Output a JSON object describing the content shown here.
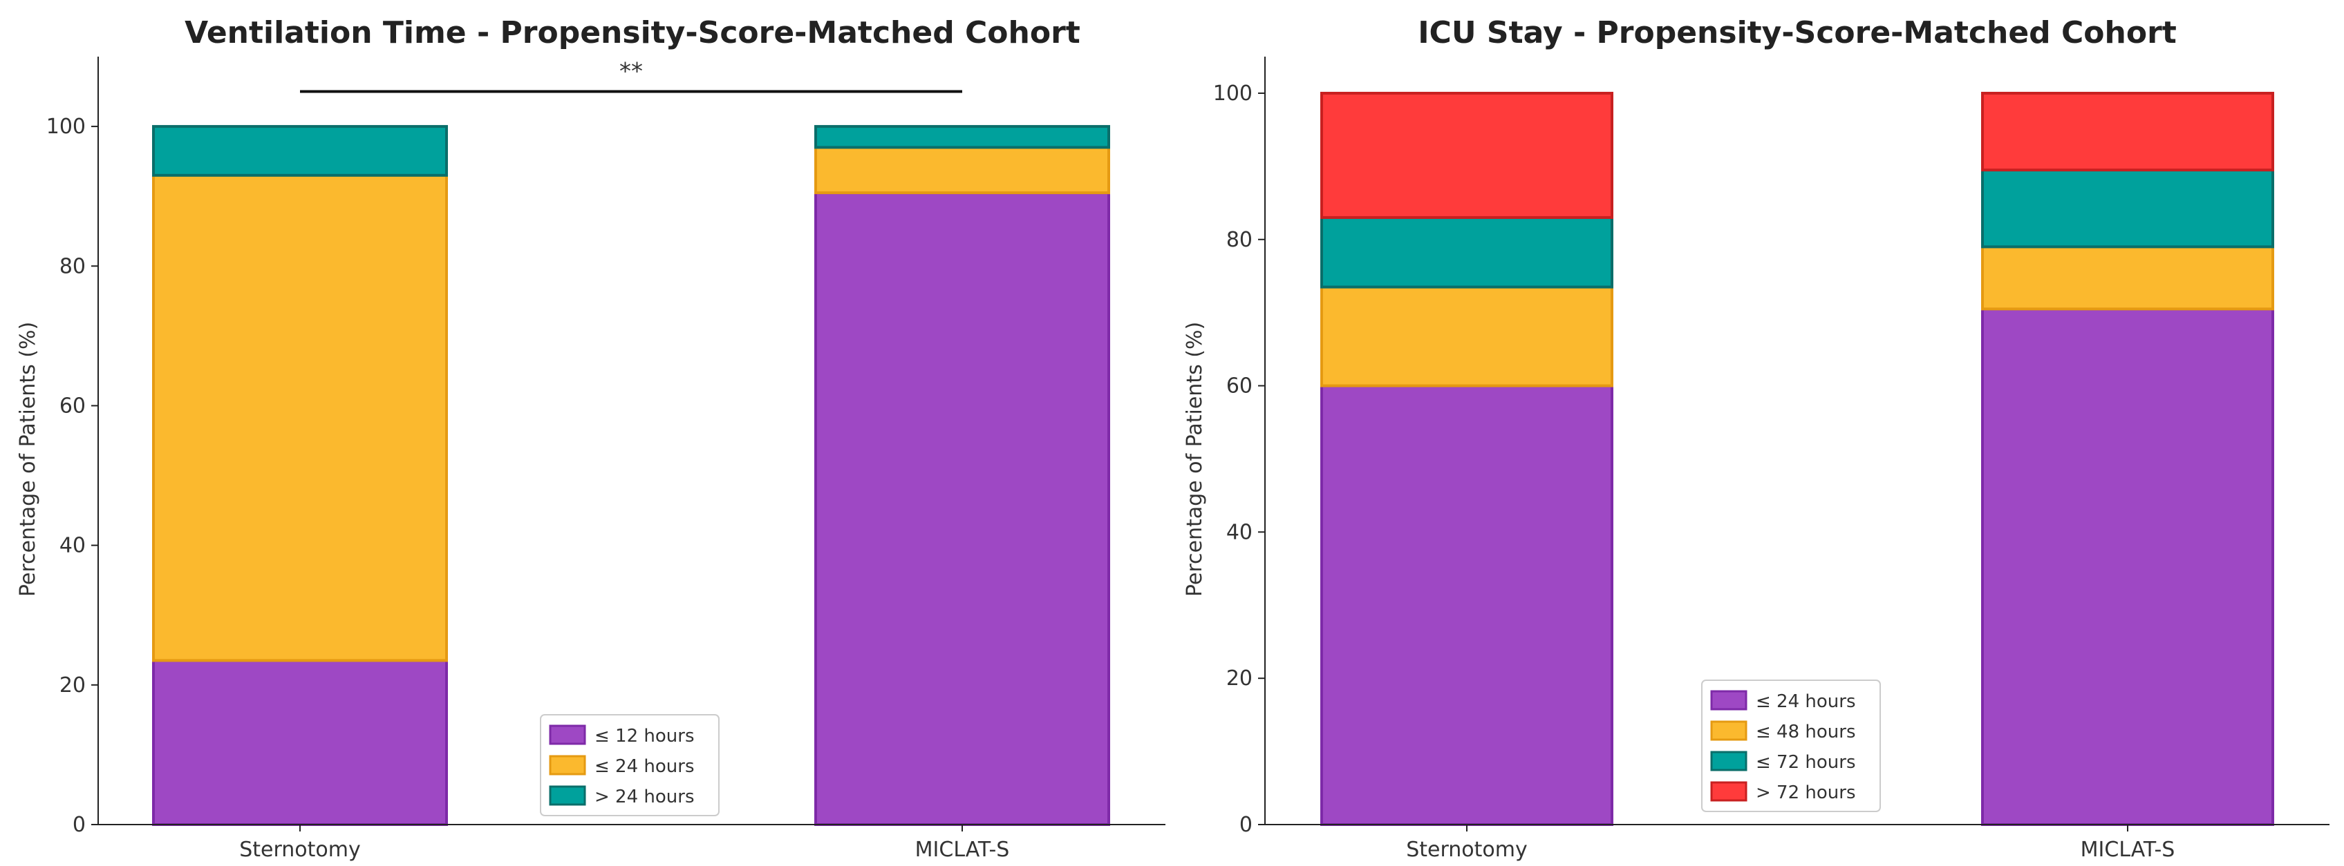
{
  "chart_data": [
    {
      "type": "bar",
      "stacked": true,
      "title": "Ventilation Time - Propensity-Score-Matched Cohort",
      "xlabel": "",
      "ylabel": "Percentage of Patients (%)",
      "ylim": [
        0,
        110
      ],
      "yticks": [
        "0",
        "20",
        "40",
        "60",
        "80",
        "100"
      ],
      "grid": false,
      "legend_position": "bottom-center",
      "categories": [
        "Sternotomy",
        "MICLAT-S"
      ],
      "series": [
        {
          "name": "≤ 12 hours",
          "color": "#9E48C4",
          "edge": "#7E2AA8",
          "values": [
            23.5,
            90.5
          ]
        },
        {
          "name": "≤ 24 hours",
          "color": "#FBB92E",
          "edge": "#E59A12",
          "values": [
            69.5,
            6.5
          ]
        },
        {
          "name": "> 24 hours",
          "color": "#00A19C",
          "edge": "#0A6E6A",
          "values": [
            7.0,
            3.0
          ]
        }
      ],
      "annotation": {
        "text": "**",
        "from": "Sternotomy",
        "to": "MICLAT-S",
        "y": 105
      }
    },
    {
      "type": "bar",
      "stacked": true,
      "title": "ICU Stay - Propensity-Score-Matched Cohort",
      "xlabel": "",
      "ylabel": "Percentage of Patients (%)",
      "ylim": [
        0,
        105
      ],
      "yticks": [
        "0",
        "20",
        "40",
        "60",
        "80",
        "100"
      ],
      "grid": false,
      "legend_position": "bottom-center",
      "categories": [
        "Sternotomy",
        "MICLAT-S"
      ],
      "series": [
        {
          "name": "≤ 24 hours",
          "color": "#9E48C4",
          "edge": "#7E2AA8",
          "values": [
            60.0,
            70.5
          ]
        },
        {
          "name": "≤ 48 hours",
          "color": "#FBB92E",
          "edge": "#E59A12",
          "values": [
            13.5,
            8.5
          ]
        },
        {
          "name": "≤ 72 hours",
          "color": "#00A19C",
          "edge": "#0A6E6A",
          "values": [
            9.5,
            10.5
          ]
        },
        {
          "name": "> 72 hours",
          "color": "#FF3B3B",
          "edge": "#C82020",
          "values": [
            17.0,
            10.5
          ]
        }
      ]
    }
  ]
}
